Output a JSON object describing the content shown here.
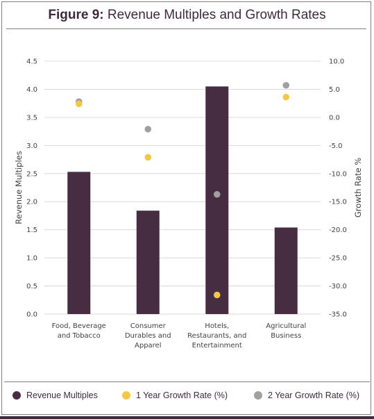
{
  "header": {
    "figure_label": "Figure 9:",
    "title": "Revenue Multiples and Growth Rates"
  },
  "colors": {
    "bar": "#472d42",
    "one_year": "#f2c84b",
    "two_year": "#a0a0a0",
    "grid": "#d9d9d9",
    "frame": "#3f2a3d"
  },
  "legend": {
    "revenue": "Revenue Multiples",
    "one_year": "1 Year Growth Rate (%)",
    "two_year": "2 Year Growth Rate (%)"
  },
  "chart_data": {
    "type": "bar",
    "title": "Revenue Multiples and Growth Rates",
    "categories": [
      [
        "Food, Beverage",
        "and Tobacco"
      ],
      [
        "Consumer",
        "Durables and",
        "Apparel"
      ],
      [
        "Hotels,",
        "Restaurants, and",
        "Entertainment"
      ],
      [
        "Agricultural",
        "Business"
      ]
    ],
    "ylabel": "Revenue Multiples",
    "y2label": "Growth Rate %",
    "ylim": [
      0,
      4.5
    ],
    "y2lim": [
      -35,
      10
    ],
    "yticks": [
      "0.0",
      "0.5",
      "1.0",
      "1.5",
      "2.0",
      "2.5",
      "3.0",
      "3.5",
      "4.0",
      "4.5"
    ],
    "y2ticks": [
      "-35.0",
      "-30.0",
      "-25.0",
      "-20.0",
      "-15.0",
      "-10.0",
      "-5.0",
      "0.0",
      "5.0",
      "10.0"
    ],
    "series": [
      {
        "name": "Revenue Multiples",
        "type": "bar",
        "axis": "left",
        "values": [
          2.53,
          1.84,
          4.05,
          1.54
        ]
      },
      {
        "name": "1 Year Growth Rate (%)",
        "type": "scatter",
        "axis": "right",
        "values": [
          2.4,
          -7.1,
          -31.6,
          3.6
        ]
      },
      {
        "name": "2 Year Growth Rate (%)",
        "type": "scatter",
        "axis": "right",
        "values": [
          2.8,
          -2.1,
          -13.7,
          5.7
        ]
      }
    ],
    "grid": true,
    "legend_position": "bottom"
  }
}
